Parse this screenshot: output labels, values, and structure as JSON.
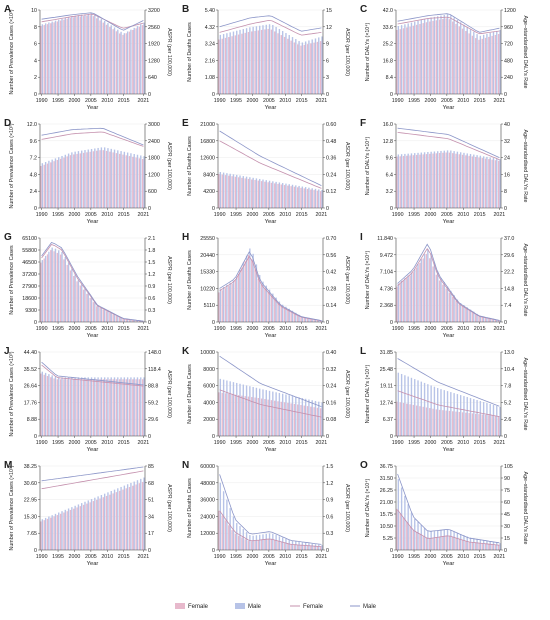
{
  "colors": {
    "female_bar": "#e7b9cc",
    "male_bar": "#b7c3e7",
    "female_line": "#c490ad",
    "male_line": "#8b95c8",
    "axis": "#444444",
    "text": "#222222"
  },
  "legend": {
    "items": [
      {
        "label": "Female",
        "kind": "bar",
        "color": "#e7b9cc"
      },
      {
        "label": "Male",
        "kind": "bar",
        "color": "#b7c3e7"
      },
      {
        "label": "Female",
        "kind": "line",
        "color": "#c490ad"
      },
      {
        "label": "Male",
        "kind": "line",
        "color": "#8b95c8"
      }
    ]
  },
  "chart_data": [
    {
      "id": "A",
      "type": "bar+line",
      "xlabel": "Year",
      "ylabel": "Number of Prevalence Cases (×10³)",
      "ylabel2": "ASPR (per 100,000)",
      "years": [
        1990,
        2021
      ],
      "xticks": [
        "1990",
        "1995",
        "2000",
        "2005",
        "2010",
        "2015",
        "2021"
      ],
      "yticks": [
        "0",
        "2",
        "4",
        "6",
        "8",
        "10"
      ],
      "ylim": [
        0,
        10
      ],
      "yticks2": [
        "0",
        "640",
        "1280",
        "1920",
        "2560",
        "3200"
      ],
      "ylim2": [
        0,
        3200
      ],
      "anchors": {
        "x": [
          0,
          0.3,
          0.5,
          0.8,
          1
        ],
        "bf": [
          8.1,
          9.1,
          9.4,
          7.0,
          8.2
        ],
        "bm": [
          8.3,
          9.3,
          9.6,
          7.2,
          8.5
        ],
        "lf": [
          2750,
          2950,
          3050,
          2500,
          2700
        ],
        "lm": [
          2850,
          3020,
          3100,
          2420,
          2800
        ]
      }
    },
    {
      "id": "B",
      "type": "bar+line",
      "xlabel": "Year",
      "ylabel": "Number of Deaths Cases",
      "ylabel2": "ASDR (per 100,000)",
      "years": [
        1990,
        2021
      ],
      "xticks": [
        "1990",
        "1995",
        "2000",
        "2005",
        "2010",
        "2015",
        "2021"
      ],
      "yticks": [
        "0",
        "1.08",
        "2.16",
        "3.24",
        "4.32",
        "5.40"
      ],
      "ylim": [
        0,
        5.4
      ],
      "yticks2": [
        "0",
        "3",
        "6",
        "9",
        "12",
        "15"
      ],
      "ylim2": [
        0,
        15
      ],
      "anchors": {
        "x": [
          0,
          0.3,
          0.5,
          0.8,
          1
        ],
        "bf": [
          3.5,
          4.0,
          4.2,
          3.1,
          3.4
        ],
        "bm": [
          3.8,
          4.3,
          4.5,
          3.3,
          3.7
        ],
        "lf": [
          11.0,
          12.5,
          13.2,
          10.5,
          11.0
        ],
        "lm": [
          12.0,
          13.6,
          14.0,
          11.2,
          11.8
        ]
      }
    },
    {
      "id": "C",
      "type": "bar+line",
      "xlabel": "Year",
      "ylabel": "Number of DALYs (×10⁴)",
      "ylabel2": "Age–standardised DALYs Rate",
      "years": [
        1990,
        2021
      ],
      "xticks": [
        "1990",
        "1995",
        "2000",
        "2005",
        "2010",
        "2015",
        "2021"
      ],
      "yticks": [
        "0",
        "8.4",
        "16.8",
        "25.2",
        "33.6",
        "42.0"
      ],
      "ylim": [
        0,
        42
      ],
      "yticks2": [
        "0",
        "240",
        "480",
        "720",
        "960",
        "1200"
      ],
      "ylim2": [
        0,
        1200
      ],
      "anchors": {
        "x": [
          0,
          0.3,
          0.5,
          0.8,
          1
        ],
        "bf": [
          32,
          36,
          38,
          27,
          30
        ],
        "bm": [
          34,
          38,
          40,
          29,
          32
        ],
        "lf": [
          1000,
          1080,
          1100,
          860,
          900
        ],
        "lm": [
          1040,
          1120,
          1150,
          880,
          940
        ]
      }
    },
    {
      "id": "D",
      "type": "bar+line",
      "xlabel": "Year",
      "ylabel": "Number of Prevalence Cases (×10³)",
      "ylabel2": "ASPR (per 100,000)",
      "years": [
        1990,
        2021
      ],
      "xticks": [
        "1990",
        "1995",
        "2000",
        "2005",
        "2010",
        "2015",
        "2021"
      ],
      "yticks": [
        "0",
        "2.4",
        "4.8",
        "7.2",
        "9.6",
        "12.0"
      ],
      "ylim": [
        0,
        12
      ],
      "yticks2": [
        "0",
        "600",
        "1200",
        "1800",
        "2400",
        "3000"
      ],
      "ylim2": [
        0,
        3000
      ],
      "anchors": {
        "x": [
          0,
          0.3,
          0.6,
          1
        ],
        "bf": [
          6.0,
          7.6,
          8.3,
          7.0
        ],
        "bm": [
          6.4,
          8.0,
          8.7,
          7.4
        ],
        "lf": [
          2450,
          2650,
          2720,
          2200
        ],
        "lm": [
          2600,
          2800,
          2850,
          2250
        ]
      }
    },
    {
      "id": "E",
      "type": "bar+line",
      "xlabel": "Year",
      "ylabel": "Number of Deaths Cases",
      "ylabel2": "ASDR (per 100,000)",
      "years": [
        1990,
        2021
      ],
      "xticks": [
        "1990",
        "1995",
        "2000",
        "2005",
        "2010",
        "2015",
        "2021"
      ],
      "yticks": [
        "0",
        "4200",
        "8400",
        "12600",
        "16800",
        "21000"
      ],
      "ylim": [
        0,
        21000
      ],
      "yticks2": [
        "0",
        "0.12",
        "0.24",
        "0.36",
        "0.48",
        "0.60"
      ],
      "ylim2": [
        0,
        0.6
      ],
      "anchors": {
        "x": [
          0,
          0.4,
          1
        ],
        "bf": [
          8500,
          6800,
          4200
        ],
        "bm": [
          9000,
          7200,
          4500
        ],
        "lf": [
          0.48,
          0.32,
          0.14
        ],
        "lm": [
          0.55,
          0.37,
          0.16
        ]
      }
    },
    {
      "id": "F",
      "type": "bar+line",
      "xlabel": "Year",
      "ylabel": "Number of DALYs (×10⁴)",
      "ylabel2": "Age–standardised DALYs Rate",
      "years": [
        1990,
        2021
      ],
      "xticks": [
        "1990",
        "1995",
        "2000",
        "2005",
        "2010",
        "2015",
        "2021"
      ],
      "yticks": [
        "0",
        "3.2",
        "6.4",
        "9.6",
        "12.8",
        "16.0"
      ],
      "ylim": [
        0,
        16
      ],
      "yticks2": [
        "0",
        "8",
        "16",
        "24",
        "32",
        "40"
      ],
      "ylim2": [
        0,
        40
      ],
      "anchors": {
        "x": [
          0,
          0.5,
          1
        ],
        "bf": [
          9.8,
          10.6,
          9.0
        ],
        "bm": [
          10.2,
          11.0,
          9.3
        ],
        "lf": [
          36,
          33,
          23
        ],
        "lm": [
          38,
          35,
          24
        ]
      }
    },
    {
      "id": "G",
      "type": "bar+line",
      "xlabel": "Year",
      "ylabel": "Number of Prevalence Cases",
      "ylabel2": "ASPR (per 100,000)",
      "years": [
        1990,
        2021
      ],
      "xticks": [
        "1990",
        "1995",
        "2000",
        "2005",
        "2010",
        "2015",
        "2021"
      ],
      "yticks": [
        "0",
        "9300",
        "18600",
        "27900",
        "37200",
        "46500",
        "55800",
        "65100"
      ],
      "ylim": [
        0,
        65100
      ],
      "yticks2": [
        "0",
        "0.3",
        "0.6",
        "0.9",
        "1.2",
        "1.5",
        "1.8",
        "2.1"
      ],
      "ylim2": [
        0,
        2.1
      ],
      "anchors": {
        "x": [
          0,
          0.1,
          0.2,
          0.35,
          0.55,
          0.8,
          1
        ],
        "bf": [
          46000,
          56000,
          52000,
          32000,
          12000,
          2500,
          400
        ],
        "bm": [
          48000,
          58000,
          54000,
          33000,
          12500,
          2700,
          450
        ],
        "lf": [
          1.6,
          1.95,
          1.8,
          1.1,
          0.4,
          0.08,
          0.02
        ],
        "lm": [
          1.65,
          2.0,
          1.85,
          1.15,
          0.42,
          0.09,
          0.02
        ]
      }
    },
    {
      "id": "H",
      "type": "bar+line",
      "xlabel": "Year",
      "ylabel": "Number of Deaths Cases",
      "ylabel2": "ASDR (per 100,000)",
      "years": [
        1990,
        2021
      ],
      "xticks": [
        "1990",
        "1995",
        "2000",
        "2005",
        "2010",
        "2015",
        "2021"
      ],
      "yticks": [
        "0",
        "5110",
        "10220",
        "15330",
        "20440",
        "25550"
      ],
      "ylim": [
        0,
        25550
      ],
      "yticks2": [
        "0",
        "0.14",
        "0.28",
        "0.42",
        "0.56",
        "0.70"
      ],
      "ylim2": [
        0,
        0.7
      ],
      "anchors": {
        "x": [
          0,
          0.15,
          0.3,
          0.4,
          0.6,
          0.8,
          1
        ],
        "bf": [
          9000,
          12000,
          21000,
          12000,
          5000,
          1500,
          400
        ],
        "bm": [
          10000,
          13000,
          23000,
          13000,
          5500,
          1700,
          450
        ],
        "lf": [
          0.26,
          0.34,
          0.56,
          0.32,
          0.13,
          0.04,
          0.01
        ],
        "lm": [
          0.28,
          0.36,
          0.6,
          0.34,
          0.14,
          0.045,
          0.012
        ]
      }
    },
    {
      "id": "I",
      "type": "bar+line",
      "xlabel": "Year",
      "ylabel": "Number of DALYs (×10⁴)",
      "ylabel2": "Age–standardised DALYs Rate",
      "years": [
        1990,
        2021
      ],
      "xticks": [
        "1990",
        "1995",
        "2000",
        "2005",
        "2010",
        "2015",
        "2021"
      ],
      "yticks": [
        "0",
        "2.368",
        "4.736",
        "7.104",
        "9.472",
        "11.840"
      ],
      "ylim": [
        0,
        11.84
      ],
      "yticks2": [
        "0",
        "7.4",
        "14.8",
        "22.2",
        "29.6",
        "37.0"
      ],
      "ylim2": [
        0,
        37
      ],
      "anchors": {
        "x": [
          0,
          0.15,
          0.3,
          0.4,
          0.6,
          0.8,
          1
        ],
        "bf": [
          5.0,
          6.8,
          9.8,
          6.2,
          2.6,
          0.8,
          0.2
        ],
        "bm": [
          5.4,
          7.2,
          10.5,
          6.6,
          2.8,
          0.9,
          0.25
        ],
        "lf": [
          16,
          22,
          33,
          20,
          8,
          2.5,
          0.6
        ],
        "lm": [
          17,
          23,
          35,
          21,
          8.5,
          2.7,
          0.7
        ]
      }
    },
    {
      "id": "J",
      "type": "bar+line",
      "xlabel": "Year",
      "ylabel": "Number of Prevalence Cases (×10³)",
      "ylabel2": "ASPR (per 100,000)",
      "years": [
        1990,
        2021
      ],
      "xticks": [
        "1990",
        "1995",
        "2000",
        "2005",
        "2010",
        "2015",
        "2021"
      ],
      "yticks": [
        "0",
        "8.88",
        "17.76",
        "26.64",
        "35.52",
        "44.40"
      ],
      "ylim": [
        0,
        44.4
      ],
      "yticks2": [
        "0",
        "29.6",
        "59.2",
        "88.8",
        "118.4",
        "148.0"
      ],
      "ylim2": [
        0,
        148
      ],
      "anchors": {
        "x": [
          0,
          0.15,
          1
        ],
        "bf": [
          33,
          30,
          30
        ],
        "bm": [
          34,
          31,
          31
        ],
        "lf": [
          125,
          103,
          88
        ],
        "lm": [
          130,
          106,
          90
        ]
      }
    },
    {
      "id": "K",
      "type": "bar+line",
      "xlabel": "Year",
      "ylabel": "Number of Deaths Cases",
      "ylabel2": "ASDR (per 100,000)",
      "years": [
        1990,
        2021
      ],
      "xticks": [
        "1990",
        "1995",
        "2000",
        "2005",
        "2010",
        "2015",
        "2021"
      ],
      "yticks": [
        "0",
        "2000",
        "4000",
        "6000",
        "8000",
        "10000"
      ],
      "ylim": [
        0,
        10000
      ],
      "yticks2": [
        "0",
        "0.08",
        "0.16",
        "0.24",
        "0.32",
        "0.40"
      ],
      "ylim2": [
        0,
        0.4
      ],
      "anchors": {
        "x": [
          0,
          0.4,
          1
        ],
        "bf": [
          5200,
          4500,
          3300
        ],
        "bm": [
          6800,
          5600,
          4000
        ],
        "lf": [
          0.22,
          0.15,
          0.09
        ],
        "lm": [
          0.38,
          0.25,
          0.14
        ]
      }
    },
    {
      "id": "L",
      "type": "bar+line",
      "xlabel": "Year",
      "ylabel": "Number of DALYs (×10⁴)",
      "ylabel2": "Age–standardised DALYs Rate",
      "years": [
        1990,
        2021
      ],
      "xticks": [
        "1990",
        "1995",
        "2000",
        "2005",
        "2010",
        "2015",
        "2021"
      ],
      "yticks": [
        "0",
        "6.37",
        "12.74",
        "19.11",
        "25.48",
        "31.85"
      ],
      "ylim": [
        0,
        31.85
      ],
      "yticks2": [
        "0",
        "2.6",
        "5.2",
        "7.8",
        "10.4",
        "13.0"
      ],
      "ylim2": [
        0,
        13
      ],
      "anchors": {
        "x": [
          0,
          0.4,
          1
        ],
        "bf": [
          13,
          10,
          7.5
        ],
        "bm": [
          24,
          18,
          11
        ],
        "lf": [
          7,
          4.8,
          3
        ],
        "lm": [
          12,
          8.3,
          4.6
        ]
      }
    },
    {
      "id": "M",
      "type": "bar+line",
      "xlabel": "Year",
      "ylabel": "Number of Prevalence Cases (×10³)",
      "ylabel2": "ASPR (per 100,000)",
      "years": [
        1990,
        2021
      ],
      "xticks": [
        "1990",
        "1995",
        "2000",
        "2005",
        "2010",
        "2015",
        "2021"
      ],
      "yticks": [
        "0",
        "7.65",
        "15.30",
        "22.95",
        "30.60",
        "38.25"
      ],
      "ylim": [
        0,
        38.25
      ],
      "yticks2": [
        "0",
        "17",
        "34",
        "51",
        "68",
        "85"
      ],
      "ylim2": [
        0,
        85
      ],
      "anchors": {
        "x": [
          0,
          1
        ],
        "bf": [
          13,
          31
        ],
        "bm": [
          14,
          33
        ],
        "lf": [
          62,
          80
        ],
        "lm": [
          70,
          84
        ]
      }
    },
    {
      "id": "N",
      "type": "bar+line",
      "xlabel": "Year",
      "ylabel": "Number of Deaths Cases",
      "ylabel2": "ASDR (per 100,000)",
      "years": [
        1990,
        2021
      ],
      "xticks": [
        "1990",
        "1995",
        "2000",
        "2005",
        "2010",
        "2015",
        "2021"
      ],
      "yticks": [
        "0",
        "12000",
        "24000",
        "36000",
        "48000",
        "60000"
      ],
      "ylim": [
        0,
        60000
      ],
      "yticks2": [
        "0",
        "0.3",
        "0.6",
        "0.9",
        "1.2",
        "1.5"
      ],
      "ylim2": [
        0,
        1.5
      ],
      "anchors": {
        "x": [
          0,
          0.15,
          0.3,
          0.5,
          0.7,
          1
        ],
        "bf": [
          28000,
          12000,
          6000,
          8000,
          4000,
          2500
        ],
        "bm": [
          48000,
          20000,
          10000,
          12000,
          6500,
          3500
        ],
        "lf": [
          0.7,
          0.32,
          0.16,
          0.2,
          0.1,
          0.06
        ],
        "lm": [
          1.35,
          0.55,
          0.28,
          0.33,
          0.17,
          0.1
        ]
      }
    },
    {
      "id": "O",
      "type": "bar+line",
      "xlabel": "Year",
      "ylabel": "Number of DALYs (×10⁴)",
      "ylabel2": "Age–standardised DALYs Rate",
      "years": [
        1990,
        2021
      ],
      "xticks": [
        "1990",
        "1995",
        "2000",
        "2005",
        "2010",
        "2015",
        "2021"
      ],
      "yticks": [
        "0",
        "5.25",
        "10.50",
        "15.75",
        "21.00",
        "26.25",
        "31.50",
        "36.75"
      ],
      "ylim": [
        0,
        36.75
      ],
      "yticks2": [
        "0",
        "15",
        "30",
        "45",
        "60",
        "75",
        "90",
        "105"
      ],
      "ylim2": [
        0,
        105
      ],
      "anchors": {
        "x": [
          0,
          0.15,
          0.3,
          0.5,
          0.7,
          1
        ],
        "bf": [
          18,
          9,
          5,
          6.5,
          3.5,
          2
        ],
        "bm": [
          31,
          14,
          8,
          9,
          5.5,
          3
        ],
        "lf": [
          50,
          25,
          14,
          18,
          10,
          6
        ],
        "lm": [
          95,
          42,
          23,
          26,
          15,
          9
        ]
      }
    }
  ]
}
